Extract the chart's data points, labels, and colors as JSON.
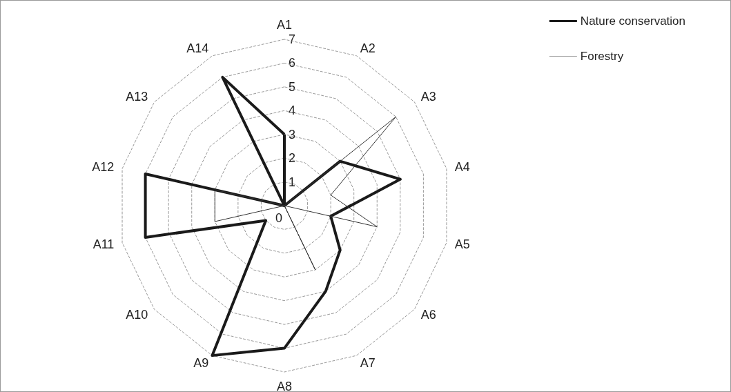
{
  "chart_data": {
    "type": "radar",
    "categories": [
      "A1",
      "A2",
      "A3",
      "A4",
      "A5",
      "A6",
      "A7",
      "A8",
      "A9",
      "A10",
      "A11",
      "A12",
      "A13",
      "A14"
    ],
    "series": [
      {
        "name": "Nature conservation",
        "color": "#1a1a1a",
        "values": [
          3,
          0,
          3,
          5,
          2,
          3,
          4,
          6,
          7,
          1,
          6,
          6,
          0,
          6
        ]
      },
      {
        "name": "Forestry",
        "color": "#333333",
        "values": [
          0,
          0,
          6,
          2,
          4,
          0,
          3,
          0,
          0,
          0,
          3,
          3,
          0,
          0
        ]
      }
    ],
    "ylim": [
      0,
      7
    ],
    "yticks": [
      0,
      1,
      2,
      3,
      4,
      5,
      6,
      7
    ],
    "grid": true,
    "legend": "top right",
    "marker": "none",
    "line_style": "solid"
  }
}
